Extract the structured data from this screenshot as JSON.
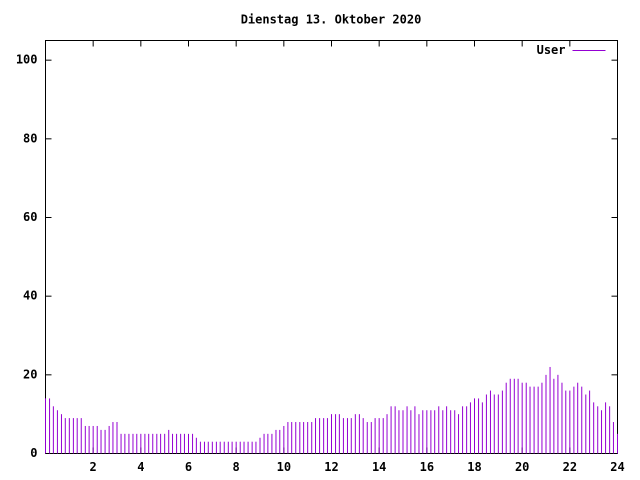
{
  "chart_data": {
    "type": "impulse",
    "title": "Dienstag 13. Oktober 2020",
    "xlim": [
      0,
      24
    ],
    "ylim": [
      0,
      105
    ],
    "xticks": [
      2,
      4,
      6,
      8,
      10,
      12,
      14,
      16,
      18,
      20,
      22,
      24
    ],
    "yticks": [
      0,
      20,
      40,
      60,
      80,
      100
    ],
    "grid": false,
    "legend": "top-right",
    "series": [
      {
        "name": "User",
        "color": "#9400d3",
        "x": [
          0,
          0.17,
          0.33,
          0.5,
          0.67,
          0.83,
          1,
          1.17,
          1.33,
          1.5,
          1.67,
          1.83,
          2,
          2.17,
          2.33,
          2.5,
          2.67,
          2.83,
          3,
          3.17,
          3.33,
          3.5,
          3.67,
          3.83,
          4,
          4.17,
          4.33,
          4.5,
          4.67,
          4.83,
          5,
          5.17,
          5.33,
          5.5,
          5.67,
          5.83,
          6,
          6.17,
          6.33,
          6.5,
          6.67,
          6.83,
          7,
          7.17,
          7.33,
          7.5,
          7.67,
          7.83,
          8,
          8.17,
          8.33,
          8.5,
          8.67,
          8.83,
          9,
          9.17,
          9.33,
          9.5,
          9.67,
          9.83,
          10,
          10.17,
          10.33,
          10.5,
          10.67,
          10.83,
          11,
          11.17,
          11.33,
          11.5,
          11.67,
          11.83,
          12,
          12.17,
          12.33,
          12.5,
          12.67,
          12.83,
          13,
          13.17,
          13.33,
          13.5,
          13.67,
          13.83,
          14,
          14.17,
          14.33,
          14.5,
          14.67,
          14.83,
          15,
          15.17,
          15.33,
          15.5,
          15.67,
          15.83,
          16,
          16.17,
          16.33,
          16.5,
          16.67,
          16.83,
          17,
          17.17,
          17.33,
          17.5,
          17.67,
          17.83,
          18,
          18.17,
          18.33,
          18.5,
          18.67,
          18.83,
          19,
          19.17,
          19.33,
          19.5,
          19.67,
          19.83,
          20,
          20.17,
          20.33,
          20.5,
          20.67,
          20.83,
          21,
          21.17,
          21.33,
          21.5,
          21.67,
          21.83,
          22,
          22.17,
          22.33,
          22.5,
          22.67,
          22.83,
          23,
          23.17,
          23.33,
          23.5,
          23.67,
          23.83,
          24
        ],
        "values": [
          14,
          14,
          12,
          11,
          10,
          9,
          9,
          9,
          9,
          9,
          7,
          7,
          7,
          7,
          6,
          6,
          7,
          8,
          8,
          5,
          5,
          5,
          5,
          5,
          5,
          5,
          5,
          5,
          5,
          5,
          5,
          6,
          5,
          5,
          5,
          5,
          5,
          5,
          4,
          3,
          3,
          3,
          3,
          3,
          3,
          3,
          3,
          3,
          3,
          3,
          3,
          3,
          3,
          3,
          4,
          5,
          5,
          5,
          6,
          6,
          7,
          8,
          8,
          8,
          8,
          8,
          8,
          8,
          9,
          9,
          9,
          9,
          10,
          10,
          10,
          9,
          9,
          9,
          10,
          10,
          9,
          8,
          8,
          9,
          9,
          9,
          10,
          12,
          12,
          11,
          11,
          12,
          11,
          12,
          10,
          11,
          11,
          11,
          11,
          12,
          11,
          12,
          11,
          11,
          10,
          12,
          12,
          13,
          14,
          14,
          13,
          15,
          16,
          15,
          15,
          16,
          18,
          19,
          19,
          19,
          18,
          18,
          17,
          17,
          17,
          18,
          20,
          22,
          19,
          20,
          18,
          16,
          16,
          17,
          18,
          17,
          15,
          16,
          13,
          12,
          11,
          13,
          12,
          8,
          5
        ]
      }
    ]
  }
}
